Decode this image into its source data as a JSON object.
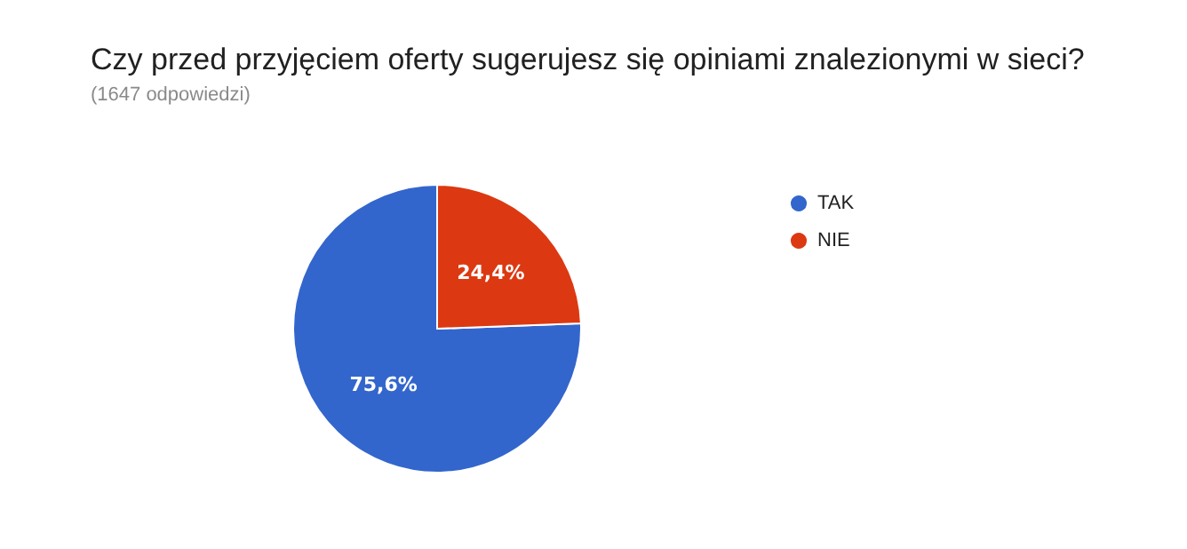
{
  "chart_data": {
    "type": "pie",
    "title": "Czy przed przyjęciem oferty sugerujesz się opiniami znalezionymi w sieci?",
    "subtitle": "(1647 odpowiedzi)",
    "categories": [
      "TAK",
      "NIE"
    ],
    "values": [
      75.6,
      24.4
    ],
    "colors": [
      "#3366cc",
      "#dc3912"
    ],
    "value_labels": [
      "75,6%",
      "24,4%"
    ],
    "legend": "top right"
  }
}
